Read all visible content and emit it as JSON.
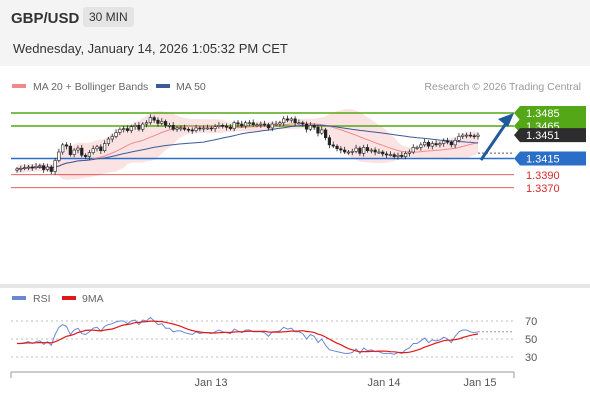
{
  "header": {
    "symbol": "GBP/USD",
    "timeframe": "30 MIN"
  },
  "datetime": "Wednesday, January 14, 2026 1:05:32 PM CET",
  "legend": {
    "ma20_label": "MA 20 + Bollinger Bands",
    "ma50_label": "MA 50",
    "credit": "Research © 2026 Trading Central"
  },
  "rsi_legend": {
    "rsi_label": "RSI",
    "ma_label": "9MA"
  },
  "colors": {
    "resistance": "#54a817",
    "support": "#2a6ec8",
    "red_level": "#d22a2a",
    "current": "#2d2d2d",
    "arrow": "#1e5a9c",
    "ma20": "#f08a8a",
    "ma50": "#3b5a9a",
    "band": "#fbd9d9",
    "rsi": "#6a87d4",
    "rsi_ma": "#e01818"
  },
  "chart_data": {
    "type": "candlestick",
    "ylim": [
      1.336,
      1.35
    ],
    "levels": [
      {
        "value": 1.3485,
        "label": "1.3485",
        "kind": "resistance"
      },
      {
        "value": 1.3465,
        "label": "1.3465",
        "kind": "resistance"
      },
      {
        "value": 1.3451,
        "label": "1.3451",
        "kind": "current"
      },
      {
        "value": 1.3415,
        "label": "1.3415",
        "kind": "support"
      },
      {
        "value": 1.339,
        "label": "1.3390",
        "kind": "red"
      },
      {
        "value": 1.337,
        "label": "1.3370",
        "kind": "red"
      }
    ],
    "x_ticks": [
      "Jan 13",
      "Jan 14",
      "Jan 15"
    ],
    "closes": [
      1.3399,
      1.34,
      1.3401,
      1.3402,
      1.3401,
      1.3403,
      1.3404,
      1.3398,
      1.3402,
      1.3395,
      1.3412,
      1.3425,
      1.3436,
      1.3434,
      1.3421,
      1.3428,
      1.3431,
      1.342,
      1.3418,
      1.3424,
      1.343,
      1.3433,
      1.3427,
      1.3438,
      1.3445,
      1.3449,
      1.3455,
      1.346,
      1.3461,
      1.3458,
      1.3464,
      1.3466,
      1.346,
      1.3468,
      1.347,
      1.3478,
      1.3474,
      1.3469,
      1.3472,
      1.3466,
      1.3466,
      1.346,
      1.3462,
      1.3462,
      1.346,
      1.3459,
      1.3458,
      1.3462,
      1.3461,
      1.3462,
      1.3462,
      1.3461,
      1.3464,
      1.3466,
      1.3465,
      1.3463,
      1.3461,
      1.347,
      1.3468,
      1.3465,
      1.347,
      1.347,
      1.3467,
      1.3467,
      1.3468,
      1.3467,
      1.3462,
      1.3468,
      1.3468,
      1.347,
      1.3476,
      1.3474,
      1.3476,
      1.347,
      1.347,
      1.3468,
      1.346,
      1.3466,
      1.3463,
      1.3454,
      1.3459,
      1.3447,
      1.3436,
      1.3434,
      1.343,
      1.3428,
      1.3425,
      1.3425,
      1.3426,
      1.3431,
      1.3423,
      1.3432,
      1.3427,
      1.3428,
      1.3425,
      1.3425,
      1.3422,
      1.3421,
      1.3421,
      1.3418,
      1.342,
      1.3418,
      1.3423,
      1.3425,
      1.3432,
      1.3432,
      1.3436,
      1.344,
      1.3434,
      1.3438,
      1.3436,
      1.3438,
      1.3442,
      1.344,
      1.3436,
      1.3443,
      1.3449,
      1.3451,
      1.3451,
      1.345,
      1.3449,
      1.3451
    ],
    "rsi": [
      45,
      45,
      46,
      47,
      45,
      47,
      48,
      44,
      47,
      43,
      55,
      63,
      66,
      64,
      55,
      60,
      62,
      56,
      55,
      58,
      62,
      63,
      59,
      64,
      66,
      67,
      69,
      70,
      70,
      67,
      70,
      71,
      66,
      71,
      70,
      74,
      70,
      66,
      67,
      62,
      62,
      58,
      59,
      59,
      57,
      56,
      55,
      58,
      56,
      57,
      57,
      56,
      58,
      60,
      58,
      57,
      56,
      61,
      59,
      57,
      60,
      60,
      58,
      58,
      58,
      57,
      53,
      58,
      58,
      59,
      63,
      61,
      62,
      58,
      58,
      56,
      50,
      55,
      53,
      46,
      50,
      43,
      38,
      37,
      36,
      35,
      34,
      34,
      35,
      39,
      34,
      40,
      37,
      38,
      36,
      36,
      34,
      34,
      34,
      33,
      35,
      34,
      38,
      40,
      45,
      45,
      48,
      51,
      46,
      49,
      48,
      49,
      52,
      50,
      46,
      53,
      58,
      60,
      60,
      58,
      57,
      58
    ],
    "rsi_ylim": [
      20,
      80
    ],
    "rsi_ticks": [
      70,
      50,
      30
    ]
  }
}
